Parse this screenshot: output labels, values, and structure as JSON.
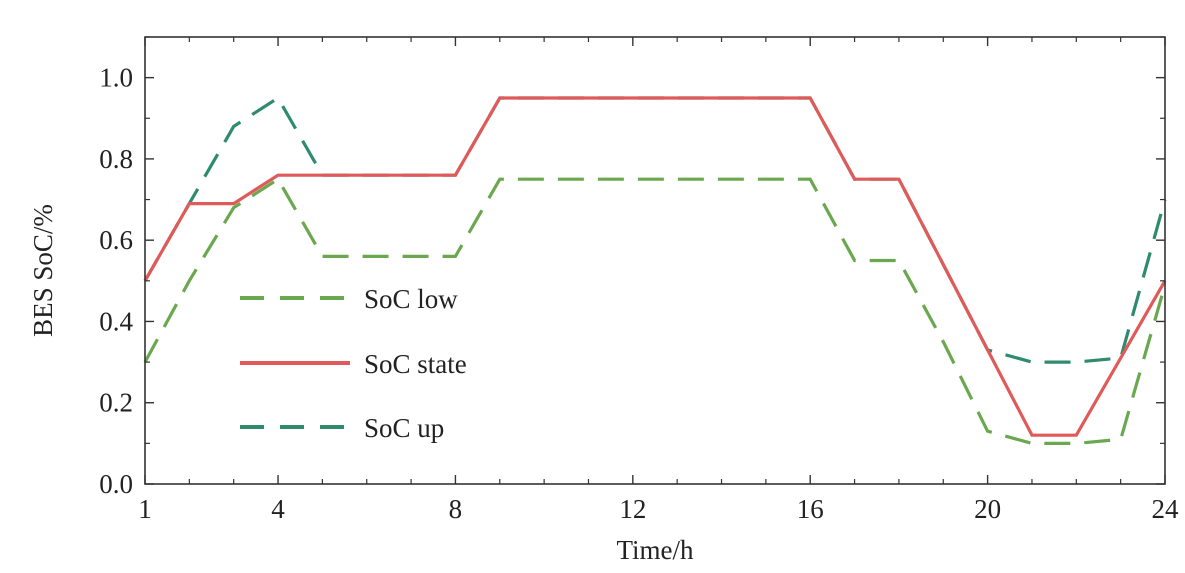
{
  "chart_data": {
    "type": "line",
    "title": "",
    "xlabel": "Time/h",
    "ylabel": "BES SoC/%",
    "xlim": [
      1,
      24
    ],
    "ylim": [
      0,
      1.1
    ],
    "xticks": [
      1,
      4,
      8,
      12,
      16,
      20,
      24
    ],
    "yticks": [
      0.0,
      0.2,
      0.4,
      0.6,
      0.8,
      1.0
    ],
    "ytick_labels": [
      "0.0",
      "0.2",
      "0.4",
      "0.6",
      "0.8",
      "1.0"
    ],
    "grid": false,
    "legend_position": "center-left",
    "x": [
      1,
      2,
      3,
      4,
      5,
      6,
      7,
      8,
      9,
      10,
      11,
      12,
      13,
      14,
      15,
      16,
      17,
      18,
      19,
      20,
      21,
      22,
      23,
      24
    ],
    "series": [
      {
        "name": "SoC low",
        "color": "#6aa84f",
        "dash": "dashed",
        "values": [
          0.3,
          0.5,
          0.68,
          0.75,
          0.56,
          0.56,
          0.56,
          0.56,
          0.75,
          0.75,
          0.75,
          0.75,
          0.75,
          0.75,
          0.75,
          0.75,
          0.55,
          0.55,
          0.35,
          0.13,
          0.1,
          0.1,
          0.11,
          0.49
        ]
      },
      {
        "name": "SoC state",
        "color": "#e05a5a",
        "dash": "solid",
        "values": [
          0.5,
          0.69,
          0.69,
          0.76,
          0.76,
          0.76,
          0.76,
          0.76,
          0.95,
          0.95,
          0.95,
          0.95,
          0.95,
          0.95,
          0.95,
          0.95,
          0.75,
          0.75,
          0.54,
          0.33,
          0.12,
          0.12,
          0.31,
          0.5
        ]
      },
      {
        "name": "SoC up",
        "color": "#2e8b6e",
        "dash": "dashed",
        "values": [
          0.5,
          0.69,
          0.88,
          0.95,
          0.76,
          0.76,
          0.76,
          0.76,
          0.95,
          0.95,
          0.95,
          0.95,
          0.95,
          0.95,
          0.95,
          0.95,
          0.75,
          0.75,
          0.54,
          0.33,
          0.3,
          0.3,
          0.31,
          0.7
        ]
      }
    ]
  }
}
